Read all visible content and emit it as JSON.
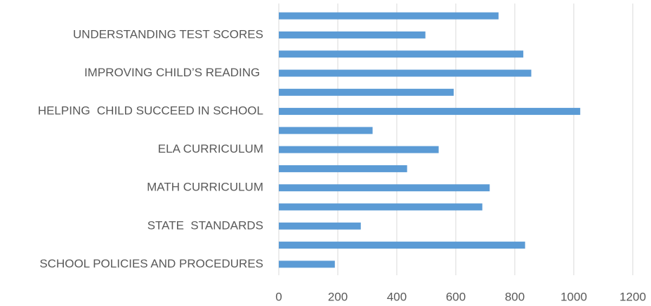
{
  "chart_data": {
    "type": "barh",
    "categories": [
      "SCHOOL POLICIES AND PROCEDURES",
      null,
      "STATE  STANDARDS",
      null,
      "MATH CURRICULUM",
      null,
      "ELA CURRICULUM",
      null,
      "HELPING  CHILD SUCCEED IN SCHOOL",
      null,
      "IMPROVING CHILD’S READING ",
      null,
      "UNDERSTANDING TEST SCORES",
      null
    ],
    "values": [
      190,
      835,
      278,
      690,
      715,
      435,
      542,
      318,
      1022,
      593,
      856,
      829,
      497,
      745
    ],
    "color": "#5b9bd5",
    "xlim": [
      0,
      1200
    ],
    "xticks": [
      0,
      200,
      400,
      600,
      800,
      1000,
      1200
    ],
    "grid": true
  }
}
